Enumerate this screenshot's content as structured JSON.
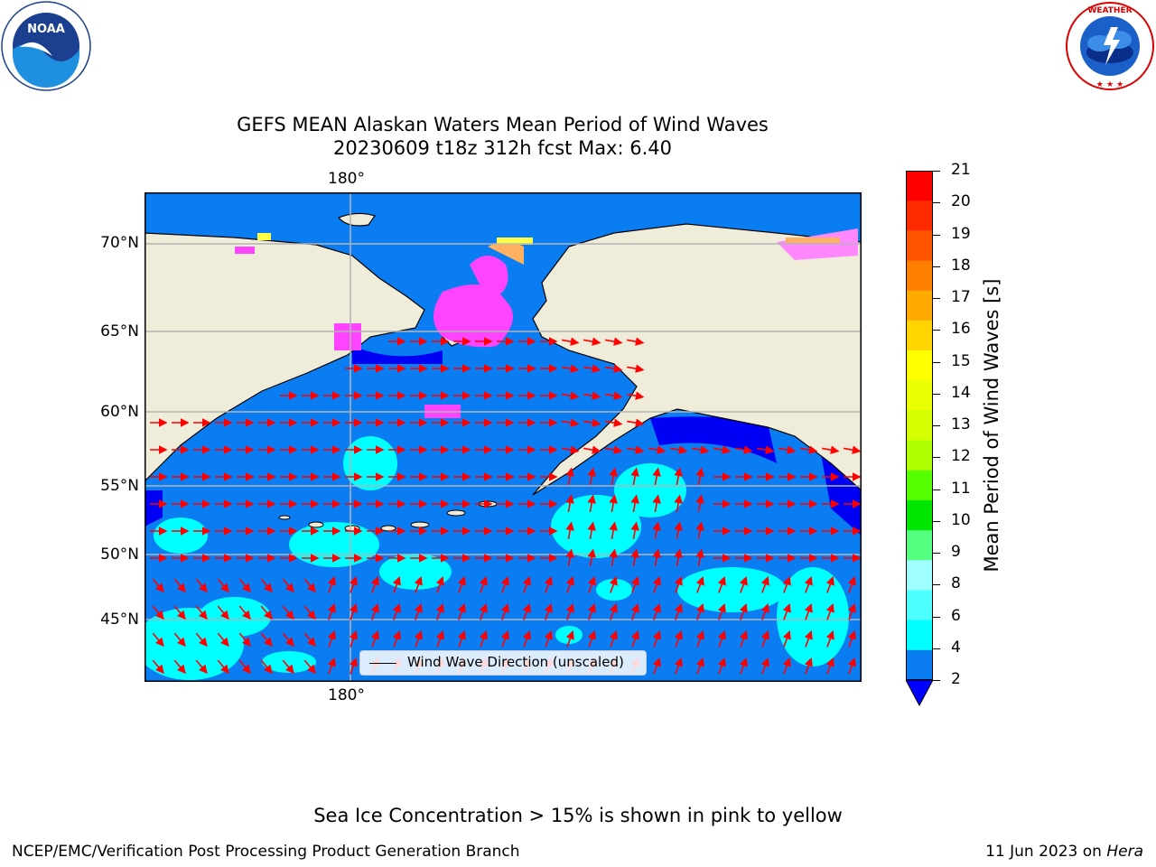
{
  "title": {
    "line1": "GEFS MEAN Alaskan Waters Mean Period of Wind Waves",
    "line2": "20230609 t18z 312h fcst   Max: 6.40"
  },
  "map": {
    "lon_label_top": "180°",
    "lon_label_bottom": "180°",
    "lat_labels": [
      "70°N",
      "65°N",
      "60°N",
      "55°N",
      "50°N",
      "45°N"
    ],
    "legend": "Wind Wave Direction (unscaled)",
    "colors": {
      "land": "#efecd9",
      "ocean_2_4": "#0a7df2",
      "ocean_below_2": "#0000f5",
      "ocean_4_6": "#00ffff",
      "ocean_6_8": "#4dfffb",
      "ice_pink": "#ff44ff",
      "ice_orange": "#ffb060",
      "ice_yellow": "#ffff44",
      "arrow": "#ff0000",
      "grid": "#b4b4b4"
    }
  },
  "colorbar": {
    "label": "Mean Period of Wind Waves [s]",
    "ticks": [
      "21",
      "20",
      "19",
      "18",
      "17",
      "16",
      "15",
      "14",
      "13",
      "12",
      "11",
      "10",
      "9",
      "8",
      "6",
      "4",
      "2"
    ],
    "colors": [
      "#ff0000",
      "#ff2a00",
      "#ff5500",
      "#ff7f00",
      "#ffaa00",
      "#ffd400",
      "#ffff00",
      "#eaff00",
      "#d4ff00",
      "#b0ff00",
      "#55ff00",
      "#00e600",
      "#55ff7f",
      "#a0ffff",
      "#4dffff",
      "#00ffff",
      "#0a7df2"
    ],
    "extend_color": "#0000ff"
  },
  "footer": {
    "ice_note": "Sea Ice Concentration > 15% is shown in pink to yellow",
    "left": "NCEP/EMC/Verification Post Processing Product Generation Branch",
    "right_prefix": "11 Jun 2023 on ",
    "right_host": "Hera"
  },
  "logos": {
    "noaa_text": "NOAA",
    "noaa_ring": "NATIONAL OCEANIC AND ATMOSPHERIC ADMINISTRATION · U.S. DEPARTMENT OF COMMERCE",
    "nws_ring": "NATIONAL WEATHER SERVICE"
  }
}
